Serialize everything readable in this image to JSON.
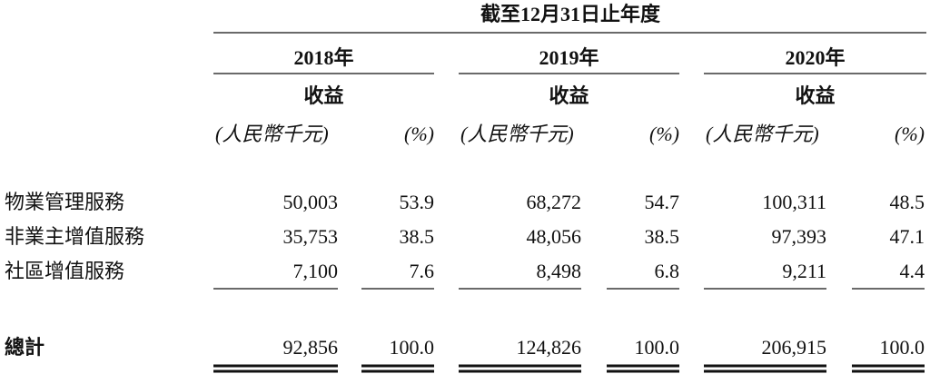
{
  "header": {
    "period": "截至12月31日止年度",
    "years": [
      {
        "year": "2018年",
        "metric": "收益",
        "unit": "(人民幣千元)",
        "pct": "(%)"
      },
      {
        "year": "2019年",
        "metric": "收益",
        "unit": "(人民幣千元)",
        "pct": "(%)"
      },
      {
        "year": "2020年",
        "metric": "收益",
        "unit": "(人民幣千元)",
        "pct": "(%)"
      }
    ]
  },
  "table": {
    "rows": [
      {
        "label": "物業管理服務",
        "cells": [
          "50,003",
          "53.9",
          "68,272",
          "54.7",
          "100,311",
          "48.5"
        ]
      },
      {
        "label": "非業主增值服務",
        "cells": [
          "35,753",
          "38.5",
          "48,056",
          "38.5",
          "97,393",
          "47.1"
        ]
      },
      {
        "label": "社區增值服務",
        "cells": [
          "7,100",
          "7.6",
          "8,498",
          "6.8",
          "9,211",
          "4.4"
        ]
      }
    ],
    "total": {
      "label": "總計",
      "cells": [
        "92,856",
        "100.0",
        "124,826",
        "100.0",
        "206,915",
        "100.0"
      ]
    }
  }
}
